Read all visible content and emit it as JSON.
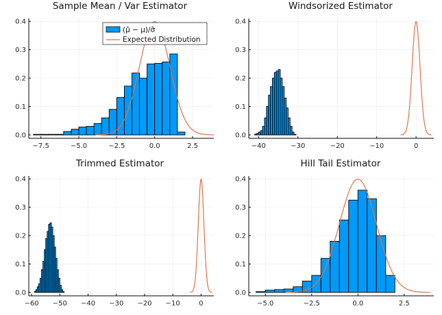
{
  "colors": {
    "histogram": "#009AF9",
    "expected": "#E26F46"
  },
  "legend": {
    "histogram_label": "(μ̂ − μ)/σ̂",
    "expected_label": "Expected Distribution"
  },
  "chart_data": [
    {
      "type": "bar",
      "title": "Sample Mean / Var Estimator",
      "xlim": [
        -8.3,
        3.9
      ],
      "ylim": [
        -0.012,
        0.41
      ],
      "xticks": [
        -7.5,
        -5.0,
        -2.5,
        0.0,
        2.5
      ],
      "xtick_labels": [
        "−7.5",
        "−5.0",
        "−2.5",
        "0.0",
        "2.5"
      ],
      "yticks": [
        0.0,
        0.1,
        0.2,
        0.3,
        0.4
      ],
      "ytick_labels": [
        "0.0",
        "0.1",
        "0.2",
        "0.3",
        "0.4"
      ],
      "grid": true,
      "legend": "top-right",
      "bin_edges": [
        -8.0,
        -7.5,
        -7.0,
        -6.5,
        -6.0,
        -5.5,
        -5.0,
        -4.5,
        -4.0,
        -3.5,
        -3.0,
        -2.5,
        -2.0,
        -1.5,
        -1.0,
        -0.5,
        0.0,
        0.5,
        1.0,
        1.5,
        2.0
      ],
      "values": [
        0.002,
        0.002,
        0.002,
        0.002,
        0.012,
        0.02,
        0.028,
        0.03,
        0.04,
        0.06,
        0.09,
        0.132,
        0.172,
        0.218,
        0.2,
        0.25,
        0.252,
        0.257,
        0.285,
        0.01
      ],
      "curve": {
        "name": "Expected Distribution",
        "mean": 0,
        "sd": 1,
        "x_range": [
          -3.9,
          3.9
        ]
      }
    },
    {
      "type": "bar",
      "title": "Windsorized Estimator",
      "xlim": [
        -42.5,
        4.5
      ],
      "ylim": [
        -0.012,
        0.41
      ],
      "xticks": [
        -40,
        -30,
        -20,
        -10,
        0
      ],
      "xtick_labels": [
        "−40",
        "−30",
        "−20",
        "−10",
        "0"
      ],
      "yticks": [
        0.0,
        0.1,
        0.2,
        0.3,
        0.4
      ],
      "ytick_labels": [
        "0.0",
        "0.1",
        "0.2",
        "0.3",
        "0.4"
      ],
      "grid": true,
      "bin_edges": [
        -41.0,
        -40.5,
        -40.0,
        -39.5,
        -39.0,
        -38.5,
        -38.0,
        -37.5,
        -37.0,
        -36.5,
        -36.0,
        -35.5,
        -35.0,
        -34.5,
        -34.0,
        -33.5,
        -33.0,
        -32.5,
        -32.0,
        -31.5,
        -31.0,
        -30.5
      ],
      "values": [
        0.003,
        0.005,
        0.01,
        0.015,
        0.03,
        0.06,
        0.1,
        0.14,
        0.17,
        0.2,
        0.22,
        0.225,
        0.23,
        0.2,
        0.17,
        0.13,
        0.095,
        0.06,
        0.03,
        0.01,
        0.002
      ],
      "curve": {
        "name": "Expected Distribution",
        "mean": 0,
        "sd": 1,
        "x_range": [
          -3.9,
          3.9
        ]
      }
    },
    {
      "type": "bar",
      "title": "Trimmed Estimator",
      "xlim": [
        -61.0,
        4.5
      ],
      "ylim": [
        -0.012,
        0.41
      ],
      "xticks": [
        -60,
        -50,
        -40,
        -30,
        -20,
        -10,
        0
      ],
      "xtick_labels": [
        "−60",
        "−50",
        "−40",
        "−30",
        "−20",
        "−10",
        "0"
      ],
      "yticks": [
        0.0,
        0.1,
        0.2,
        0.3,
        0.4
      ],
      "ytick_labels": [
        "0.0",
        "0.1",
        "0.2",
        "0.3",
        "0.4"
      ],
      "grid": true,
      "bin_edges": [
        -59.0,
        -58.5,
        -58.0,
        -57.5,
        -57.0,
        -56.5,
        -56.0,
        -55.5,
        -55.0,
        -54.5,
        -54.0,
        -53.5,
        -53.0,
        -52.5,
        -52.0,
        -51.5,
        -51.0,
        -50.5,
        -50.0,
        -49.5,
        -49.0,
        -48.5
      ],
      "values": [
        0.003,
        0.01,
        0.02,
        0.03,
        0.05,
        0.08,
        0.11,
        0.15,
        0.19,
        0.215,
        0.24,
        0.245,
        0.23,
        0.2,
        0.16,
        0.12,
        0.08,
        0.05,
        0.025,
        0.01,
        0.003
      ],
      "curve": {
        "name": "Expected Distribution",
        "mean": 0,
        "sd": 1,
        "x_range": [
          -3.9,
          3.9
        ]
      }
    },
    {
      "type": "bar",
      "title": "Hill Tail Estimator",
      "xlim": [
        -5.9,
        4.1
      ],
      "ylim": [
        -0.012,
        0.41
      ],
      "xticks": [
        -5.0,
        -2.5,
        0.0,
        2.5
      ],
      "xtick_labels": [
        "−5.0",
        "−2.5",
        "0.0",
        "2.5"
      ],
      "yticks": [
        0.0,
        0.1,
        0.2,
        0.3,
        0.4
      ],
      "ytick_labels": [
        "0.0",
        "0.1",
        "0.2",
        "0.3",
        "0.4"
      ],
      "grid": true,
      "bin_edges": [
        -5.5,
        -5.0,
        -4.5,
        -4.0,
        -3.5,
        -3.0,
        -2.5,
        -2.0,
        -1.5,
        -1.0,
        -0.5,
        0.0,
        0.5,
        1.0,
        1.5,
        2.0
      ],
      "values": [
        0.003,
        0.008,
        0.01,
        0.012,
        0.02,
        0.04,
        0.06,
        0.12,
        0.18,
        0.255,
        0.325,
        0.36,
        0.33,
        0.2,
        0.06
      ],
      "curve": {
        "name": "Expected Distribution",
        "mean": 0,
        "sd": 1,
        "x_range": [
          -3.9,
          3.9
        ]
      }
    }
  ]
}
